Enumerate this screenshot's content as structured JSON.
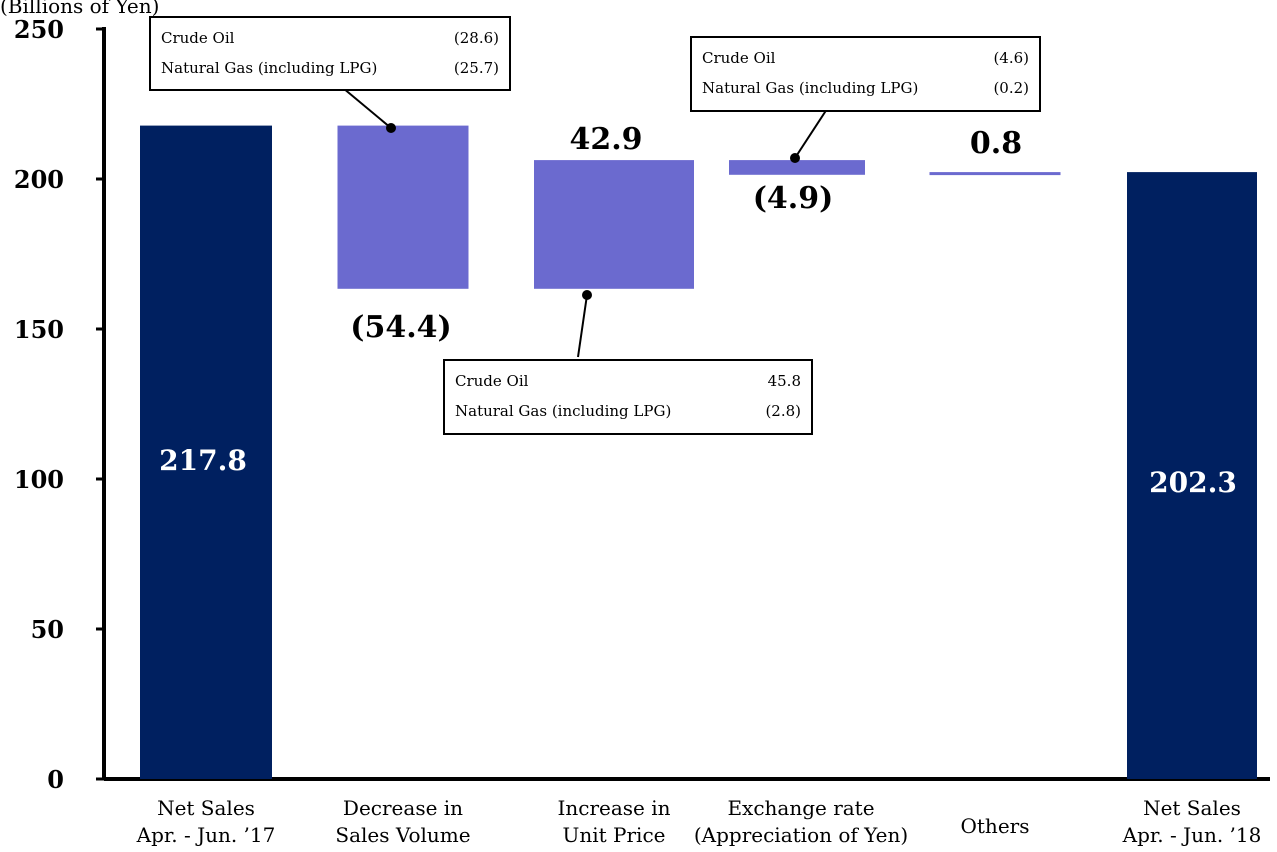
{
  "chart_data": {
    "type": "bar",
    "subtype": "waterfall",
    "ylabel": "(Billions of Yen)",
    "ylim": [
      0,
      250
    ],
    "yticks": [
      "0",
      "50",
      "100",
      "150",
      "200",
      "250"
    ],
    "categories": [
      "Net Sales\nApr. - Jun. ’17",
      "Decrease in\nSales Volume",
      "Increase in\nUnit Price",
      "Exchange rate\n(Appreciation of Yen)",
      "Others",
      "Net Sales\nApr. - Jun. ’18"
    ],
    "bars": [
      {
        "kind": "total",
        "start": 0,
        "end": 217.8,
        "label": "217.8",
        "color": "#002060"
      },
      {
        "kind": "delta",
        "start": 217.8,
        "end": 163.4,
        "label": "(54.4)",
        "color": "#6B6ACF"
      },
      {
        "kind": "delta",
        "start": 163.4,
        "end": 206.3,
        "label": "42.9",
        "color": "#6B6ACF"
      },
      {
        "kind": "delta",
        "start": 206.3,
        "end": 201.4,
        "label": "(4.9)",
        "color": "#6B6ACF"
      },
      {
        "kind": "delta",
        "start": 201.5,
        "end": 202.3,
        "label": "0.8",
        "color": "#6B6ACF"
      },
      {
        "kind": "total",
        "start": 0,
        "end": 202.3,
        "label": "202.3",
        "color": "#002060"
      }
    ],
    "grid": false,
    "legend": "none"
  },
  "callouts": [
    {
      "bar": 1,
      "rows": [
        {
          "name": "Crude Oil",
          "value": "(28.6)"
        },
        {
          "name": "Natural Gas (including LPG)",
          "value": "(25.7)"
        }
      ]
    },
    {
      "bar": 2,
      "rows": [
        {
          "name": "Crude Oil",
          "value": "45.8"
        },
        {
          "name": "Natural Gas (including LPG)",
          "value": "(2.8)"
        }
      ]
    },
    {
      "bar": 3,
      "rows": [
        {
          "name": "Crude Oil",
          "value": "(4.6)"
        },
        {
          "name": "Natural Gas (including LPG)",
          "value": "(0.2)"
        }
      ]
    }
  ]
}
